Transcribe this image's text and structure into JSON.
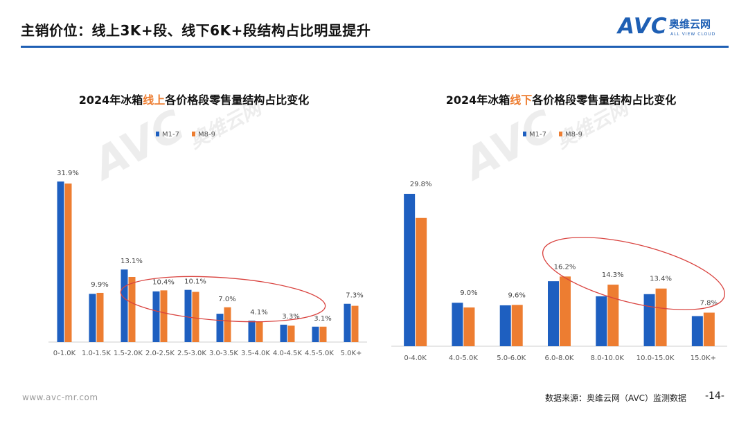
{
  "header": {
    "title": "主销价位：线上3K+段、线下6K+段结构占比明显提升"
  },
  "logo": {
    "mark": "AVC",
    "cn": "奥维云网",
    "en": "ALL VIEW CLOUD"
  },
  "colors": {
    "accent": "#1e5fb4",
    "series_m1_7": "#1e5fc0",
    "series_m8_9": "#ed7d31",
    "highlight_oval": "#d9423e",
    "title_highlight": "#ed7d31"
  },
  "chart_data": [
    {
      "type": "bar",
      "title": "2024年冰箱线上各价格段零售量结构占比变化",
      "title_prefix": "2024年冰箱",
      "title_highlight": "线上",
      "title_suffix": "各价格段零售量结构占比变化",
      "categories": [
        "0-1.0K",
        "1.0-1.5K",
        "1.5-2.0K",
        "2.0-2.5K",
        "2.5-3.0K",
        "3.0-3.5K",
        "3.5-4.0K",
        "4.0-4.5K",
        "4.5-5.0K",
        "5.0K+"
      ],
      "series": [
        {
          "name": "M1-7",
          "values": [
            32.3,
            9.7,
            14.6,
            10.2,
            10.5,
            5.7,
            4.3,
            3.5,
            3.1,
            7.7
          ]
        },
        {
          "name": "M8-9",
          "values": [
            31.9,
            9.9,
            13.1,
            10.4,
            10.1,
            7.0,
            4.1,
            3.3,
            3.1,
            7.3
          ]
        }
      ],
      "data_labels": [
        "31.9%",
        "9.9%",
        "13.1%",
        "10.4%",
        "10.1%",
        "7.0%",
        "4.1%",
        "3.3%",
        "3.1%",
        "7.3%"
      ],
      "ylim": [
        0,
        34
      ],
      "legend_position": "top-center",
      "highlight_categories": [
        "3.0-3.5K",
        "5.0K+"
      ]
    },
    {
      "type": "bar",
      "title": "2024年冰箱线下各价格段零售量结构占比变化",
      "title_prefix": "2024年冰箱",
      "title_highlight": "线下",
      "title_suffix": "各价格段零售量结构占比变化",
      "categories": [
        "0-4.0K",
        "4.0-5.0K",
        "5.0-6.0K",
        "6.0-8.0K",
        "8.0-10.0K",
        "10.0-15.0K",
        "15.0K+"
      ],
      "series": [
        {
          "name": "M1-7",
          "values": [
            35.4,
            10.1,
            9.5,
            15.1,
            11.6,
            12.1,
            7.0
          ]
        },
        {
          "name": "M8-9",
          "values": [
            29.8,
            9.0,
            9.6,
            16.2,
            14.3,
            13.4,
            7.8
          ]
        }
      ],
      "data_labels": [
        "29.8%",
        "9.0%",
        "9.6%",
        "16.2%",
        "14.3%",
        "13.4%",
        "7.8%"
      ],
      "ylim": [
        0,
        37
      ],
      "legend_position": "top-center",
      "highlight_categories": [
        "6.0-8.0K",
        "15.0K+"
      ]
    }
  ],
  "footer": {
    "url": "www.avc-mr.com",
    "source": "数据来源：奥维云网（AVC）监测数据",
    "page": "-14-"
  }
}
